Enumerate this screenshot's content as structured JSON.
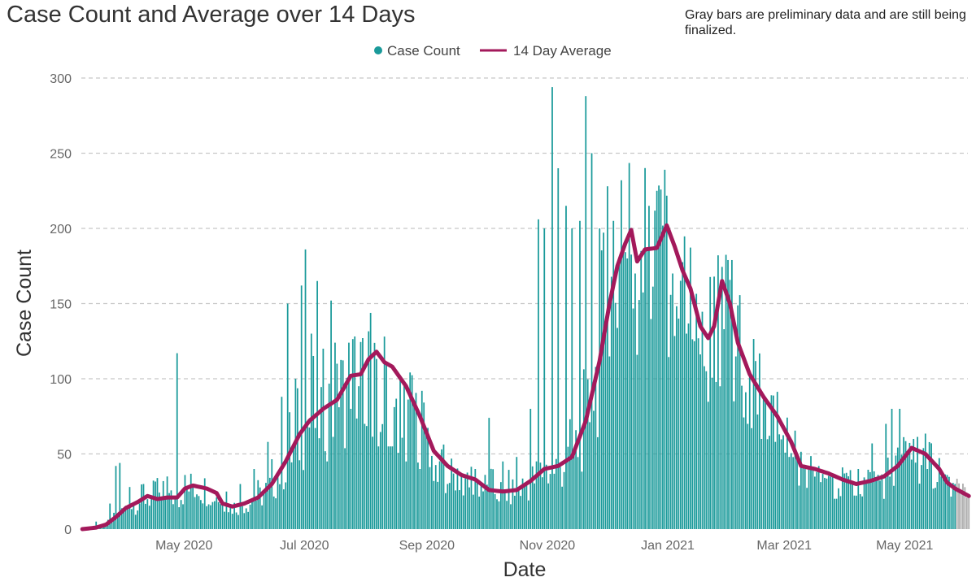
{
  "chart_data": {
    "type": "bar",
    "title": "Case Count and Average over 14 Days",
    "note": "Gray bars are preliminary data and are still being finalized.",
    "xlabel": "Date",
    "ylabel": "Case Count",
    "ylim": [
      0,
      300
    ],
    "yticks": [
      0,
      50,
      100,
      150,
      200,
      250,
      300
    ],
    "grid": true,
    "legend_position": "top-center",
    "x_start": "2020-03-10",
    "x_end": "2021-06-02",
    "xticks": [
      {
        "date": "2020-05-01",
        "label": "May 2020"
      },
      {
        "date": "2020-07-01",
        "label": "Jul 2020"
      },
      {
        "date": "2020-09-01",
        "label": "Sep 2020"
      },
      {
        "date": "2020-11-01",
        "label": "Nov 2020"
      },
      {
        "date": "2021-01-01",
        "label": "Jan 2021"
      },
      {
        "date": "2021-03-01",
        "label": "Mar 2021"
      },
      {
        "date": "2021-05-01",
        "label": "May 2021"
      }
    ],
    "colors": {
      "bars": "#1a9a9a",
      "preliminary": "#a9a9a9",
      "average": "#a3195b",
      "grid": "#c8c8c8"
    },
    "series": [
      {
        "name": "Case Count",
        "kind": "bar",
        "preliminary_from": "2021-05-27",
        "points": [
          [
            "2020-03-10",
            1
          ],
          [
            "2020-03-17",
            5
          ],
          [
            "2020-03-24",
            17
          ],
          [
            "2020-03-27",
            42
          ],
          [
            "2020-03-29",
            44
          ],
          [
            "2020-04-03",
            28
          ],
          [
            "2020-04-10",
            30
          ],
          [
            "2020-04-17",
            34
          ],
          [
            "2020-04-22",
            35
          ],
          [
            "2020-04-27",
            117
          ],
          [
            "2020-05-01",
            36
          ],
          [
            "2020-05-08",
            22
          ],
          [
            "2020-05-15",
            18
          ],
          [
            "2020-05-22",
            25
          ],
          [
            "2020-05-29",
            30
          ],
          [
            "2020-06-05",
            40
          ],
          [
            "2020-06-12",
            58
          ],
          [
            "2020-06-19",
            88
          ],
          [
            "2020-06-22",
            150
          ],
          [
            "2020-06-26",
            100
          ],
          [
            "2020-06-29",
            162
          ],
          [
            "2020-07-01",
            186
          ],
          [
            "2020-07-04",
            130
          ],
          [
            "2020-07-07",
            165
          ],
          [
            "2020-07-10",
            120
          ],
          [
            "2020-07-14",
            152
          ],
          [
            "2020-07-17",
            110
          ],
          [
            "2020-07-24",
            80
          ],
          [
            "2020-07-31",
            70
          ],
          [
            "2020-08-07",
            55
          ],
          [
            "2020-08-14",
            55
          ],
          [
            "2020-08-21",
            45
          ],
          [
            "2020-08-28",
            40
          ],
          [
            "2020-09-04",
            32
          ],
          [
            "2020-09-11",
            30
          ],
          [
            "2020-09-18",
            35
          ],
          [
            "2020-09-25",
            40
          ],
          [
            "2020-10-02",
            74
          ],
          [
            "2020-10-09",
            45
          ],
          [
            "2020-10-16",
            48
          ],
          [
            "2020-10-23",
            80
          ],
          [
            "2020-10-27",
            206
          ],
          [
            "2020-10-30",
            200
          ],
          [
            "2020-11-03",
            294
          ],
          [
            "2020-11-06",
            240
          ],
          [
            "2020-11-10",
            215
          ],
          [
            "2020-11-13",
            200
          ],
          [
            "2020-11-17",
            205
          ],
          [
            "2020-11-20",
            288
          ],
          [
            "2020-11-23",
            250
          ],
          [
            "2020-11-27",
            200
          ],
          [
            "2020-12-01",
            228
          ],
          [
            "2020-12-04",
            205
          ],
          [
            "2020-12-08",
            232
          ],
          [
            "2020-12-11",
            180
          ],
          [
            "2020-12-15",
            170
          ],
          [
            "2020-12-18",
            185
          ],
          [
            "2020-12-22",
            215
          ],
          [
            "2020-12-26",
            225
          ],
          [
            "2020-12-30",
            239
          ],
          [
            "2021-01-03",
            170
          ],
          [
            "2021-01-06",
            140
          ],
          [
            "2021-01-10",
            130
          ],
          [
            "2021-01-14",
            125
          ],
          [
            "2021-01-20",
            105
          ],
          [
            "2021-01-27",
            95
          ],
          [
            "2021-02-03",
            85
          ],
          [
            "2021-02-10",
            70
          ],
          [
            "2021-02-17",
            60
          ],
          [
            "2021-02-24",
            58
          ],
          [
            "2021-03-03",
            48
          ],
          [
            "2021-03-10",
            42
          ],
          [
            "2021-03-17",
            38
          ],
          [
            "2021-03-24",
            35
          ],
          [
            "2021-03-31",
            37
          ],
          [
            "2021-04-07",
            40
          ],
          [
            "2021-04-14",
            57
          ],
          [
            "2021-04-21",
            70
          ],
          [
            "2021-04-24",
            80
          ],
          [
            "2021-04-28",
            80
          ],
          [
            "2021-05-05",
            60
          ],
          [
            "2021-05-12",
            40
          ],
          [
            "2021-05-19",
            35
          ],
          [
            "2021-05-26",
            30
          ],
          [
            "2021-06-02",
            22
          ]
        ]
      },
      {
        "name": "14 Day Average",
        "kind": "line",
        "points": [
          [
            "2020-03-10",
            0
          ],
          [
            "2020-03-17",
            1
          ],
          [
            "2020-03-22",
            3
          ],
          [
            "2020-03-27",
            8
          ],
          [
            "2020-04-01",
            14
          ],
          [
            "2020-04-07",
            18
          ],
          [
            "2020-04-12",
            22
          ],
          [
            "2020-04-17",
            20
          ],
          [
            "2020-04-22",
            21
          ],
          [
            "2020-04-27",
            21
          ],
          [
            "2020-05-01",
            27
          ],
          [
            "2020-05-05",
            29
          ],
          [
            "2020-05-12",
            27
          ],
          [
            "2020-05-17",
            24
          ],
          [
            "2020-05-20",
            17
          ],
          [
            "2020-05-25",
            15
          ],
          [
            "2020-05-31",
            17
          ],
          [
            "2020-06-07",
            21
          ],
          [
            "2020-06-14",
            30
          ],
          [
            "2020-06-21",
            45
          ],
          [
            "2020-06-28",
            63
          ],
          [
            "2020-07-03",
            72
          ],
          [
            "2020-07-10",
            80
          ],
          [
            "2020-07-17",
            86
          ],
          [
            "2020-07-24",
            102
          ],
          [
            "2020-07-29",
            103
          ],
          [
            "2020-08-02",
            113
          ],
          [
            "2020-08-06",
            118
          ],
          [
            "2020-08-10",
            111
          ],
          [
            "2020-08-14",
            108
          ],
          [
            "2020-08-21",
            95
          ],
          [
            "2020-08-28",
            75
          ],
          [
            "2020-09-04",
            52
          ],
          [
            "2020-09-11",
            42
          ],
          [
            "2020-09-18",
            36
          ],
          [
            "2020-09-25",
            33
          ],
          [
            "2020-10-02",
            26
          ],
          [
            "2020-10-09",
            25
          ],
          [
            "2020-10-16",
            26
          ],
          [
            "2020-10-23",
            32
          ],
          [
            "2020-10-30",
            40
          ],
          [
            "2020-11-06",
            42
          ],
          [
            "2020-11-13",
            48
          ],
          [
            "2020-11-20",
            72
          ],
          [
            "2020-11-27",
            112
          ],
          [
            "2020-12-02",
            150
          ],
          [
            "2020-12-06",
            175
          ],
          [
            "2020-12-10",
            190
          ],
          [
            "2020-12-13",
            199
          ],
          [
            "2020-12-16",
            178
          ],
          [
            "2020-12-20",
            186
          ],
          [
            "2020-12-26",
            187
          ],
          [
            "2020-12-31",
            202
          ],
          [
            "2021-01-04",
            188
          ],
          [
            "2021-01-08",
            172
          ],
          [
            "2021-01-12",
            160
          ],
          [
            "2021-01-17",
            135
          ],
          [
            "2021-01-21",
            127
          ],
          [
            "2021-01-24",
            135
          ],
          [
            "2021-01-28",
            165
          ],
          [
            "2021-02-01",
            150
          ],
          [
            "2021-02-05",
            124
          ],
          [
            "2021-02-11",
            103
          ],
          [
            "2021-02-18",
            88
          ],
          [
            "2021-02-25",
            75
          ],
          [
            "2021-03-04",
            58
          ],
          [
            "2021-03-09",
            42
          ],
          [
            "2021-03-16",
            40
          ],
          [
            "2021-03-23",
            37
          ],
          [
            "2021-03-30",
            33
          ],
          [
            "2021-04-06",
            30
          ],
          [
            "2021-04-13",
            32
          ],
          [
            "2021-04-20",
            35
          ],
          [
            "2021-04-27",
            42
          ],
          [
            "2021-05-04",
            54
          ],
          [
            "2021-05-11",
            50
          ],
          [
            "2021-05-18",
            40
          ],
          [
            "2021-05-22",
            31
          ],
          [
            "2021-05-26",
            27
          ],
          [
            "2021-06-02",
            22
          ]
        ]
      }
    ]
  }
}
